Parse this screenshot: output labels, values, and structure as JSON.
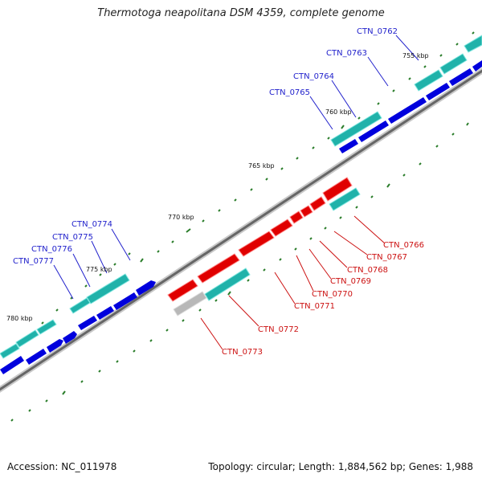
{
  "title": "Thermotoga neapolitana DSM 4359, complete genome",
  "footer": {
    "accession": "Accession: NC_011978",
    "summary": "Topology: circular; Length: 1,884,562 bp; Genes: 1,988"
  },
  "colors": {
    "forward_cds": "#0000dd",
    "reverse_cds": "#20b2aa",
    "highlight": "#e00000",
    "grey": "#b8b8b8",
    "backbone": "#707070",
    "ticks": "#2a7d2a",
    "label_blue": "#2222cc",
    "label_red": "#cc1111"
  },
  "scale_labels": [
    "755 kbp",
    "760 kbp",
    "765 kbp",
    "770 kbp",
    "775 kbp",
    "780 kbp"
  ],
  "gene_labels": {
    "blue": [
      "CTN_0762",
      "CTN_0763",
      "CTN_0764",
      "CTN_0765",
      "CTN_0774",
      "CTN_0775",
      "CTN_0776",
      "CTN_0777"
    ],
    "red": [
      "CTN_0766",
      "CTN_0767",
      "CTN_0768",
      "CTN_0769",
      "CTN_0770",
      "CTN_0771",
      "CTN_0772",
      "CTN_0773"
    ]
  }
}
